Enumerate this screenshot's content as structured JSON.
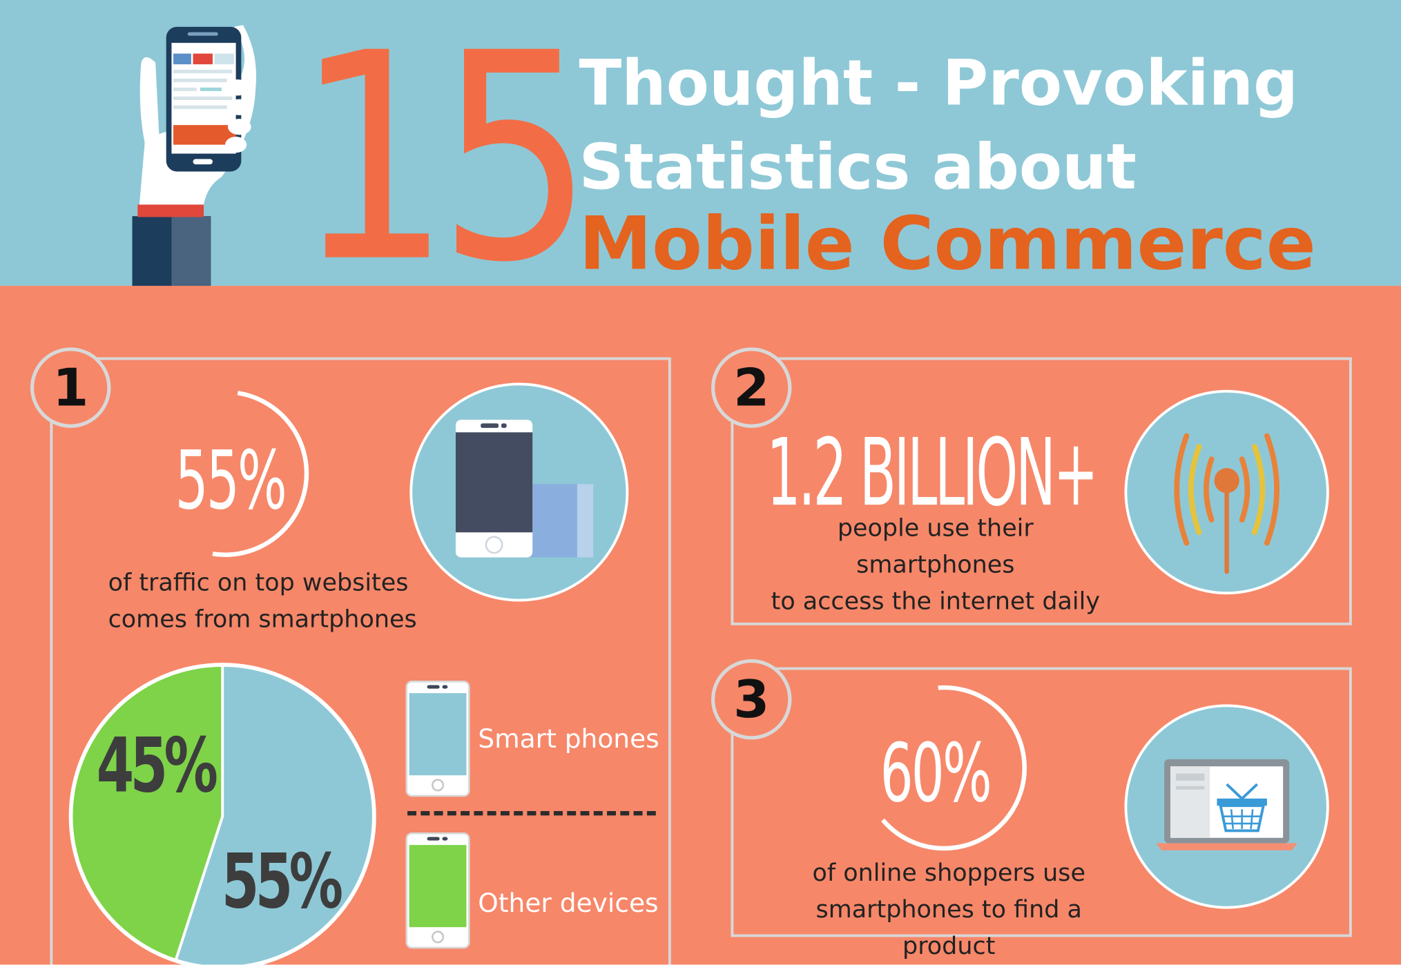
{
  "header": {
    "number": "15",
    "title_line1": "Thought - Provoking",
    "title_line2": "Statistics about",
    "title_line3": "Mobile Commerce"
  },
  "stat1": {
    "badge": "1",
    "value": "55%",
    "description": [
      "of traffic on top websites",
      "comes from smartphones"
    ],
    "icon": "smartphone-tablet-icon"
  },
  "stat2": {
    "badge": "2",
    "value": "1.2 BILLION+",
    "description": [
      "people use their smartphones",
      "to access the internet daily"
    ],
    "icon": "wireless-signal-icon"
  },
  "stat3": {
    "badge": "3",
    "value": "60%",
    "description": [
      "of online shoppers use",
      "smartphones to find a product"
    ],
    "icon": "laptop-shopping-basket-icon"
  },
  "chart_data": {
    "type": "pie",
    "categories": [
      "Smart phones",
      "Other devices"
    ],
    "values": [
      55,
      45
    ],
    "data_labels": [
      "55%",
      "45%"
    ],
    "colors": [
      "#8ec8d6",
      "#7ed348"
    ]
  },
  "legend": {
    "smart_phones": "Smart phones",
    "other_devices": "Other devices"
  },
  "colors": {
    "header_bg": "#8ec8d6",
    "body_bg": "#f68769",
    "accent_orange": "#f26d45",
    "title_orange": "#e4631f",
    "panel_border": "#d8d8d8",
    "green": "#7ed348",
    "light_blue": "#8ec8d6"
  }
}
